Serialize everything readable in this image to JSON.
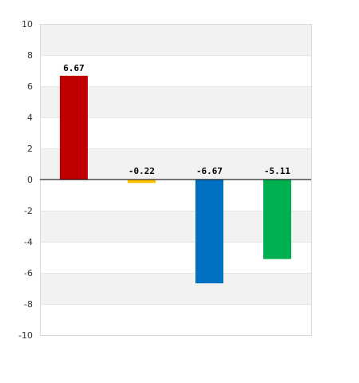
{
  "chart_data": {
    "type": "bar",
    "categories": [
      "",
      "",
      "",
      ""
    ],
    "values": [
      6.67,
      -0.22,
      -6.67,
      -5.11
    ],
    "value_labels": [
      "6.67",
      "-0.22",
      "-6.67",
      "-5.11"
    ],
    "bar_colors": [
      "#c00000",
      "#ffc000",
      "#0070c0",
      "#00b050"
    ],
    "ylim": [
      -10,
      10
    ],
    "yticks": [
      10,
      8,
      6,
      4,
      2,
      0,
      -2,
      -4,
      -6,
      -8,
      -10
    ],
    "ytick_labels": [
      "10",
      "8",
      "6",
      "4",
      "2",
      "0",
      "-2",
      "-4",
      "-6",
      "-8",
      "-10"
    ],
    "title": "",
    "xlabel": "",
    "ylabel": "",
    "grid": true,
    "band_color": "#f2f2f2",
    "legend": "none"
  }
}
